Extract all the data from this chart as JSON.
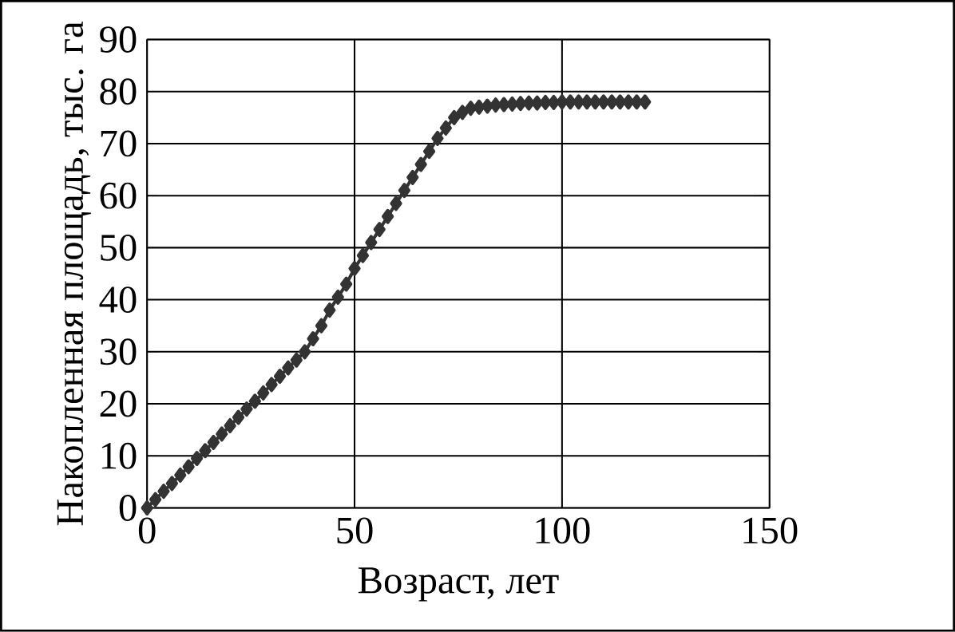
{
  "chart_data": {
    "type": "line",
    "xlabel": "Возраст, лет",
    "ylabel": "Накопленная площадь, тыс. га",
    "xlim": [
      0,
      150
    ],
    "xticks": [
      0,
      50,
      100,
      150
    ],
    "ylim": [
      0,
      90
    ],
    "yticks": [
      0,
      10,
      20,
      30,
      40,
      50,
      60,
      70,
      80,
      90
    ],
    "grid": true,
    "marker": "diamond",
    "line_style": "solid",
    "series": [
      {
        "color": "#333333",
        "x": [
          0,
          2,
          4,
          6,
          8,
          10,
          12,
          14,
          16,
          18,
          20,
          22,
          24,
          26,
          28,
          30,
          32,
          34,
          36,
          38,
          40,
          42,
          44,
          46,
          48,
          50,
          52,
          54,
          56,
          58,
          60,
          62,
          64,
          66,
          68,
          70,
          72,
          74,
          76,
          78,
          80,
          82,
          84,
          86,
          88,
          90,
          92,
          94,
          96,
          98,
          100,
          102,
          104,
          106,
          108,
          110,
          112,
          114,
          116,
          118,
          120
        ],
        "values": [
          0,
          1.6,
          3.2,
          4.7,
          6.3,
          7.9,
          9.5,
          11,
          12.6,
          14.2,
          15.8,
          17.4,
          19,
          20.5,
          22.1,
          23.7,
          25.3,
          26.9,
          28.4,
          30,
          32.5,
          35,
          38,
          40.5,
          43,
          46,
          48.5,
          51,
          53.5,
          56,
          58.5,
          61,
          63.5,
          66,
          68.5,
          71,
          73,
          75,
          76,
          76.8,
          77,
          77.2,
          77.4,
          77.5,
          77.6,
          77.7,
          77.8,
          77.8,
          77.9,
          77.9,
          78,
          78,
          78,
          78,
          78,
          78,
          78,
          78,
          78,
          78,
          78
        ]
      }
    ]
  }
}
